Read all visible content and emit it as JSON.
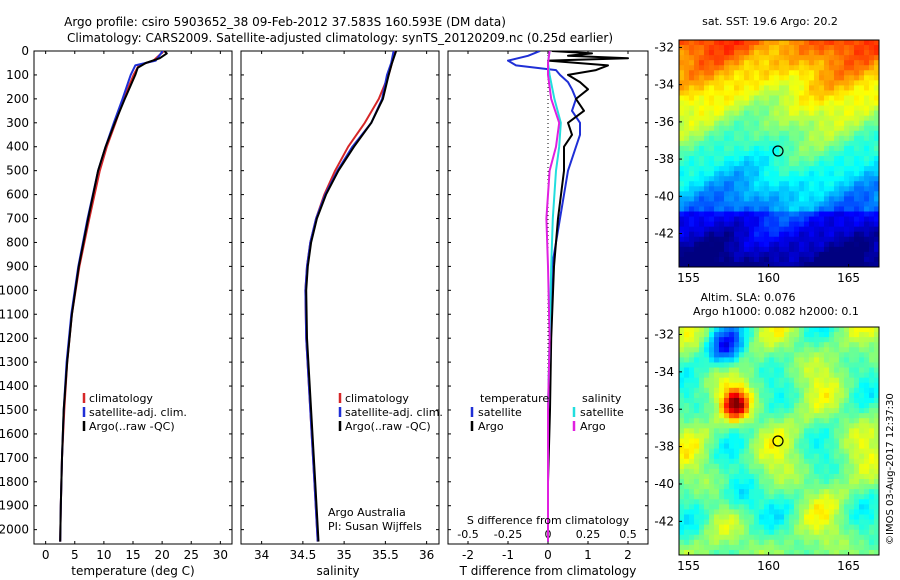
{
  "title": {
    "line1": "Argo profile: csiro 5903652_38 09-Feb-2012 37.583S 160.593E (DM data)",
    "line2": "Climatology: CARS2009. Satellite-adjusted climatology: synTS_20120209.nc (0.25d earlier)"
  },
  "colors": {
    "clim": "#d62728",
    "sat": "#1f2fd6",
    "argo": "#000000",
    "sat_s": "#22dede",
    "argo_s": "#e020e0"
  },
  "depth_ticks": [
    "0",
    "100",
    "200",
    "300",
    "400",
    "500",
    "600",
    "700",
    "800",
    "900",
    "1000",
    "1100",
    "1200",
    "1300",
    "1400",
    "1500",
    "1600",
    "1700",
    "1800",
    "1900",
    "2000"
  ],
  "chart_data": [
    {
      "type": "line",
      "panel": "temperature",
      "xlabel": "temperature (deg C)",
      "xlim": [
        -2,
        32
      ],
      "ylim": [
        2060,
        0
      ],
      "xticks": [
        "0",
        "5",
        "10",
        "15",
        "20",
        "25",
        "30"
      ],
      "legend": [
        "climatology",
        "satellite-adj. clim.",
        "Argo(..raw -QC)"
      ],
      "series": [
        {
          "name": "climatology",
          "depth": [
            0,
            40,
            60,
            100,
            200,
            300,
            400,
            500,
            700,
            900,
            1100,
            1300,
            1500,
            1700,
            1900,
            2050
          ],
          "values": [
            20.3,
            18.5,
            16.0,
            15.1,
            13.4,
            12.0,
            10.5,
            9.3,
            7.5,
            5.8,
            4.5,
            3.7,
            3.2,
            2.8,
            2.6,
            2.5
          ]
        },
        {
          "name": "satellite-adj. clim.",
          "depth": [
            0,
            40,
            60,
            100,
            200,
            300,
            400,
            500,
            700,
            900,
            1100,
            1300,
            1500,
            1700,
            1900,
            2050
          ],
          "values": [
            20.1,
            18.9,
            15.4,
            14.6,
            13.2,
            11.7,
            10.3,
            9.0,
            7.2,
            5.6,
            4.4,
            3.6,
            3.1,
            2.8,
            2.6,
            2.5
          ]
        },
        {
          "name": "Argo(..raw -QC)",
          "depth": [
            0,
            10,
            30,
            50,
            70,
            100,
            200,
            300,
            400,
            500,
            700,
            900,
            1100,
            1300,
            1500,
            1700,
            1900,
            2050
          ],
          "values": [
            20.4,
            20.8,
            19.6,
            17.2,
            15.8,
            15.4,
            13.6,
            11.9,
            10.3,
            9.0,
            7.3,
            5.7,
            4.5,
            3.7,
            3.1,
            2.8,
            2.6,
            2.5
          ]
        }
      ]
    },
    {
      "type": "line",
      "panel": "salinity",
      "xlabel": "salinity",
      "xlim": [
        33.75,
        36.15
      ],
      "ylim": [
        2060,
        0
      ],
      "xticks": [
        "34",
        "34.5",
        "35",
        "35.5",
        "36"
      ],
      "legend": [
        "climatology",
        "satellite-adj. clim.",
        "Argo(..raw -QC)"
      ],
      "annotations": [
        "Argo Australia",
        "PI: Susan Wijffels"
      ],
      "series": [
        {
          "name": "climatology",
          "depth": [
            0,
            50,
            100,
            200,
            300,
            400,
            500,
            600,
            700,
            800,
            900,
            1000,
            1200,
            1500,
            1800,
            2050
          ],
          "values": [
            35.62,
            35.58,
            35.54,
            35.42,
            35.25,
            35.05,
            34.89,
            34.76,
            34.66,
            34.59,
            34.55,
            34.53,
            34.54,
            34.59,
            34.64,
            34.68
          ]
        },
        {
          "name": "satellite-adj. clim.",
          "depth": [
            0,
            50,
            100,
            200,
            300,
            400,
            500,
            600,
            700,
            800,
            900,
            1000,
            1200,
            1500,
            1800,
            2050
          ],
          "values": [
            35.6,
            35.57,
            35.52,
            35.46,
            35.33,
            35.1,
            34.92,
            34.77,
            34.66,
            34.59,
            34.55,
            34.53,
            34.54,
            34.59,
            34.64,
            34.68
          ]
        },
        {
          "name": "Argo(..raw -QC)",
          "depth": [
            0,
            50,
            100,
            200,
            300,
            400,
            500,
            600,
            700,
            800,
            900,
            1000,
            1200,
            1500,
            1800,
            2050
          ],
          "values": [
            35.63,
            35.58,
            35.54,
            35.47,
            35.33,
            35.12,
            34.93,
            34.78,
            34.67,
            34.6,
            34.56,
            34.54,
            34.55,
            34.6,
            34.65,
            34.69
          ]
        }
      ]
    },
    {
      "type": "line",
      "panel": "differences",
      "xlabel_bottom": "T difference from climatology",
      "xlabel_top": "S difference from climatology",
      "xlim": [
        -2.5,
        2.5
      ],
      "ylim": [
        2060,
        0
      ],
      "xticks_T": [
        "-2",
        "-1",
        "0",
        "1",
        "2"
      ],
      "xticks_S": [
        "-0.5",
        "-0.25",
        "0",
        "0.25",
        "0.5"
      ],
      "legend_titles": [
        "temperature",
        "salinity"
      ],
      "legend": [
        "satellite",
        "Argo",
        "satellite",
        "Argo"
      ],
      "series": [
        {
          "name": "temperature satellite",
          "depth": [
            0,
            20,
            40,
            60,
            80,
            100,
            130,
            160,
            200,
            250,
            300,
            350,
            400,
            500,
            700,
            900,
            1200,
            1500,
            1800,
            2050
          ],
          "values": [
            -0.2,
            -0.5,
            -1.0,
            -0.8,
            0.2,
            0.3,
            0.5,
            0.6,
            0.7,
            0.6,
            0.8,
            0.8,
            0.7,
            0.5,
            0.3,
            0.1,
            0.05,
            0.0,
            0.0,
            0.0
          ]
        },
        {
          "name": "temperature Argo",
          "depth": [
            0,
            10,
            20,
            30,
            40,
            60,
            80,
            100,
            130,
            160,
            200,
            250,
            300,
            350,
            400,
            500,
            700,
            900,
            1200,
            1500,
            1800,
            2050
          ],
          "values": [
            0.1,
            1.1,
            0.5,
            2.0,
            0.0,
            1.5,
            1.2,
            0.5,
            0.8,
            1.0,
            0.7,
            0.9,
            0.5,
            0.6,
            0.4,
            0.4,
            0.25,
            0.15,
            0.08,
            0.05,
            0.0,
            0.0
          ]
        },
        {
          "name": "salinity satellite",
          "depth": [
            0,
            50,
            100,
            200,
            300,
            400,
            500,
            700,
            900,
            1200,
            1500,
            1800,
            2050
          ],
          "values": [
            0.01,
            0.0,
            0.01,
            0.04,
            0.08,
            0.07,
            0.05,
            0.03,
            0.02,
            0.01,
            0.0,
            0.0,
            0.0
          ]
        },
        {
          "name": "salinity Argo",
          "depth": [
            0,
            50,
            100,
            200,
            300,
            400,
            500,
            700,
            900,
            1200,
            1500,
            1800,
            2050
          ],
          "values": [
            0.01,
            0.0,
            0.0,
            0.02,
            0.07,
            0.05,
            0.01,
            -0.01,
            0.0,
            0.01,
            0.0,
            0.0,
            0.0
          ]
        }
      ]
    },
    {
      "type": "heatmap",
      "panel": "sst-map",
      "title": "sat. SST: 19.6 Argo: 20.2",
      "xticks": [
        "155",
        "160",
        "165"
      ],
      "yticks": [
        "-32",
        "-34",
        "-36",
        "-38",
        "-40",
        "-42"
      ],
      "marker": [
        160.593,
        -37.583
      ]
    },
    {
      "type": "heatmap",
      "panel": "sla-map",
      "title_line1": "Altim. SLA: 0.076",
      "title_line2": "Argo h1000: 0.082 h2000: 0.1",
      "xticks": [
        "155",
        "160",
        "165"
      ],
      "yticks": [
        "-32",
        "-34",
        "-36",
        "-38",
        "-40",
        "-42"
      ],
      "marker": [
        160.593,
        -37.583
      ]
    }
  ],
  "credit": "©IMOS 03-Aug-2017 12:37:30"
}
